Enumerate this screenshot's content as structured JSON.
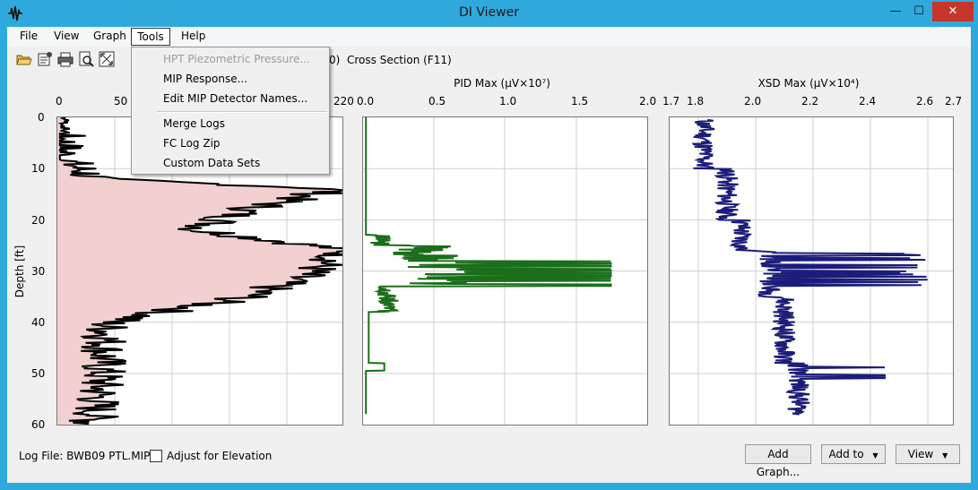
{
  "window": {
    "title": "DI Viewer",
    "minimize": "—",
    "maximize": "☐",
    "close": "✕"
  },
  "menu": {
    "file": "File",
    "view": "View",
    "graph": "Graph",
    "tools": "Tools",
    "help": "Help"
  },
  "toolbar": {
    "cut_text": "0)",
    "cross_section": "Cross Section (F11)"
  },
  "tools_menu": {
    "items": [
      "HPT Piezometric Pressure...",
      "MIP Response...",
      "Edit MIP Detector Names...",
      "Merge Logs",
      "FC Log Zip",
      "Custom Data Sets"
    ]
  },
  "graph1": {
    "x_ticks": [
      "0",
      "50",
      "220"
    ],
    "y_label": "Depth [ft]",
    "y_ticks": [
      "0",
      "10",
      "20",
      "30",
      "40",
      "50",
      "60"
    ]
  },
  "graph2": {
    "title": "PID Max (µV×10⁷)",
    "x_ticks": [
      "0.0",
      "0.5",
      "1.0",
      "1.5",
      "2.0"
    ]
  },
  "graph3": {
    "title": "XSD Max (µV×10⁴)",
    "x_ticks": [
      "1.7",
      "1.8",
      "2.0",
      "2.2",
      "2.4",
      "2.6",
      "2.7"
    ]
  },
  "bottom": {
    "log_file": "Log File: BWB09 PTL.MIP",
    "adjust": "Adjust for Elevation",
    "add_graph": "Add Graph...",
    "add_to": "Add to",
    "view": "View"
  },
  "colors": {
    "fill": "#f2d0d0",
    "pid": "#1b6e1b",
    "xsd": "#1c1c7a"
  }
}
